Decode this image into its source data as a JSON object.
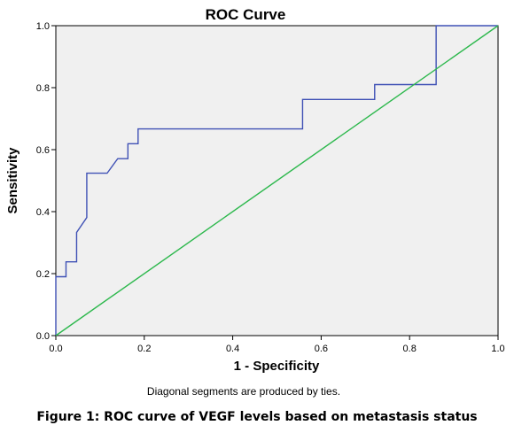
{
  "chart_data": {
    "type": "line",
    "title": "ROC Curve",
    "xlabel": "1 - Specificity",
    "ylabel": "Sensitivity",
    "xlim": [
      0,
      1
    ],
    "ylim": [
      0,
      1
    ],
    "xticks": [
      "0.0",
      "0.2",
      "0.4",
      "0.6",
      "0.8",
      "1.0"
    ],
    "yticks": [
      "0.0",
      "0.2",
      "0.4",
      "0.6",
      "0.8",
      "1.0"
    ],
    "grid": false,
    "plot_background": "#f0f0f0",
    "series": [
      {
        "color": "#3f51b5",
        "x": [
          0,
          0,
          0.023,
          0.023,
          0.047,
          0.047,
          0.07,
          0.07,
          0.116,
          0.14,
          0.163,
          0.163,
          0.186,
          0.186,
          0.558,
          0.558,
          0.721,
          0.721,
          0.86,
          0.86,
          1.0
        ],
        "y": [
          0,
          0.19,
          0.19,
          0.238,
          0.238,
          0.333,
          0.381,
          0.524,
          0.524,
          0.571,
          0.571,
          0.619,
          0.619,
          0.667,
          0.667,
          0.762,
          0.762,
          0.81,
          0.81,
          1.0,
          1.0
        ]
      },
      {
        "color": "#2db84d",
        "x": [
          0,
          1
        ],
        "y": [
          0,
          1
        ]
      }
    ],
    "footnote": "Diagonal segments are produced by ties."
  },
  "caption": "Figure 1: ROC curve of VEGF levels based on metastasis status"
}
